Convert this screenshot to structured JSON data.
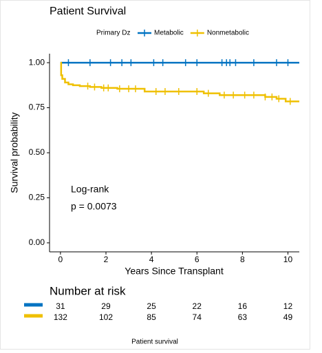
{
  "chart_data": {
    "type": "km",
    "title": "Patient Survival",
    "legend_title": "Primary Dz",
    "x_label": "Years Since Transplant",
    "y_label": "Survival probability",
    "xlim": [
      -0.48,
      10.5
    ],
    "ylim": [
      -0.05,
      1.05
    ],
    "xticks": [
      0,
      2,
      4,
      6,
      8,
      10
    ],
    "yticks": [
      {
        "value": 0,
        "label": "0.00"
      },
      {
        "value": 0.25,
        "label": "0.25"
      },
      {
        "value": 0.5,
        "label": "0.50"
      },
      {
        "value": 0.75,
        "label": "0.75"
      },
      {
        "value": 1,
        "label": "1.00"
      }
    ],
    "annotations": [
      "Log-rank",
      "p = 0.0073"
    ],
    "series": [
      {
        "name": "Metabolic",
        "color": "#0073C2",
        "x": [
          0,
          10.5
        ],
        "values": [
          1,
          1
        ],
        "censor_x": [
          0.35,
          1.3,
          2.2,
          2.7,
          3.1,
          4.1,
          4.5,
          5.5,
          6.0,
          7.1,
          7.3,
          7.45,
          7.7,
          8.5,
          9.5,
          10.0
        ]
      },
      {
        "name": "Nonmetabolic",
        "color": "#EFC000",
        "x": [
          0,
          0.03,
          0.03,
          0.08,
          0.08,
          0.2,
          0.2,
          0.35,
          0.35,
          0.55,
          0.55,
          0.85,
          0.85,
          1.3,
          1.3,
          1.8,
          1.8,
          2.5,
          2.5,
          3.7,
          3.7,
          6.3,
          6.3,
          7.0,
          7.0,
          9.0,
          9.0,
          9.5,
          9.5,
          9.9,
          9.9,
          10.5
        ],
        "values": [
          1,
          1,
          0.93,
          0.93,
          0.91,
          0.91,
          0.89,
          0.89,
          0.88,
          0.88,
          0.875,
          0.875,
          0.87,
          0.87,
          0.865,
          0.865,
          0.86,
          0.86,
          0.855,
          0.855,
          0.84,
          0.84,
          0.83,
          0.83,
          0.82,
          0.82,
          0.81,
          0.81,
          0.8,
          0.8,
          0.785,
          0.785
        ],
        "censor_x": [
          1.2,
          1.5,
          1.9,
          2.1,
          2.6,
          3.0,
          3.3,
          4.2,
          4.6,
          5.2,
          6.0,
          6.5,
          7.2,
          7.6,
          8.1,
          8.5,
          9.0,
          9.3,
          9.6,
          10.1
        ]
      }
    ],
    "risk_table": {
      "title": "Number at risk",
      "counts": [
        [
          31,
          29,
          25,
          22,
          16,
          12
        ],
        [
          132,
          102,
          85,
          74,
          63,
          49
        ]
      ]
    },
    "caption": "Patient survival"
  }
}
